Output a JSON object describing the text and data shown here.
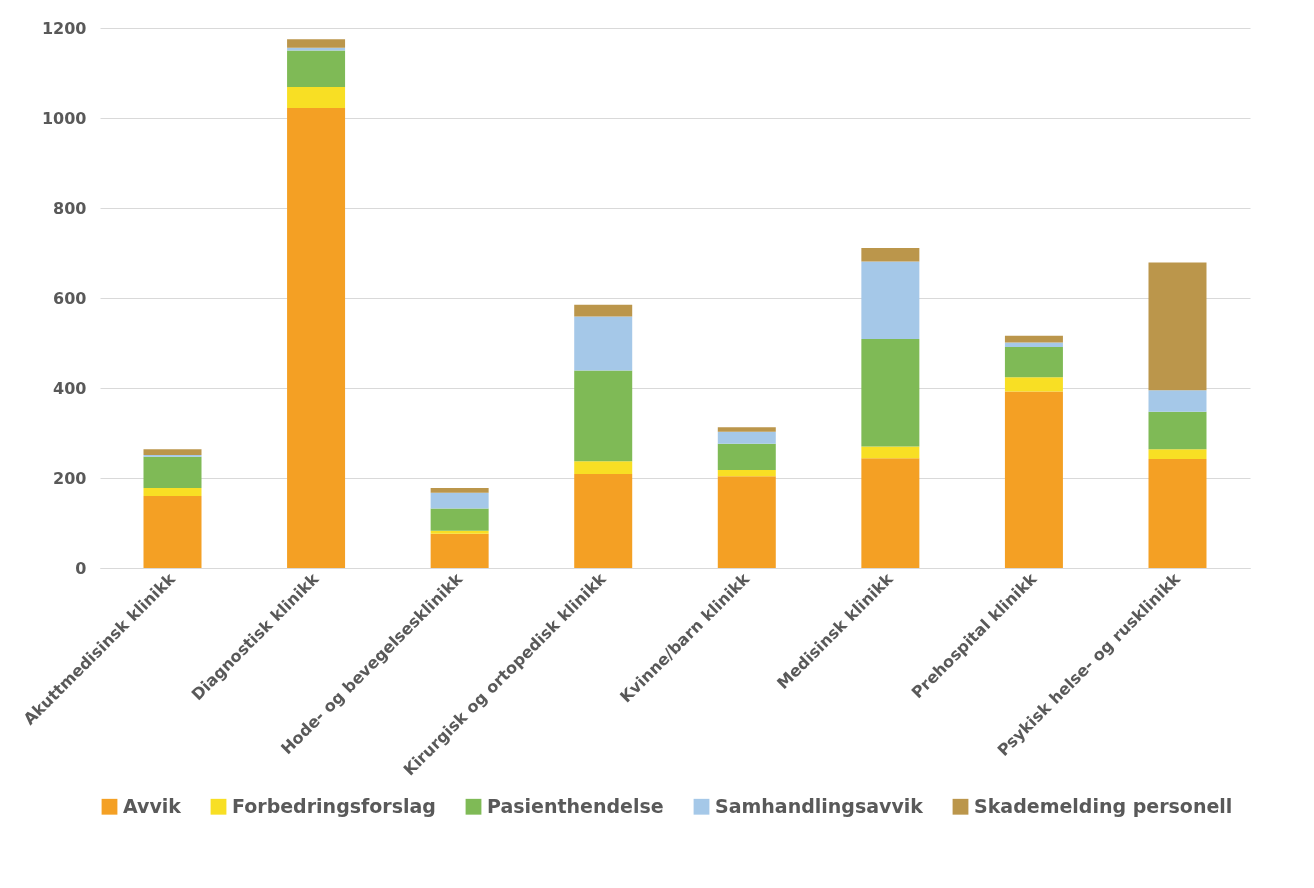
{
  "chart_data": {
    "type": "bar",
    "stacked": true,
    "categories": [
      "Akuttmedisinsk klinikk",
      "Diagnostisk klinikk",
      "Hode- og bevegelsesklinikk",
      "Kirurgisk og ortopedisk klinikk",
      "Kvinne/barn klinikk",
      "Medisinsk klinikk",
      "Prehospital klinikk",
      "Psykisk helse- og rusklinikk"
    ],
    "series": [
      {
        "name": "Avvik",
        "color": "#f4a024",
        "values": [
          160,
          1022,
          76,
          209,
          204,
          244,
          392,
          242
        ]
      },
      {
        "name": "Forbedringsforslag",
        "color": "#f8df24",
        "values": [
          18,
          47,
          7,
          28,
          14,
          26,
          32,
          22
        ]
      },
      {
        "name": "Pasienthendelse",
        "color": "#7fba56",
        "values": [
          69,
          81,
          49,
          202,
          58,
          239,
          67,
          83
        ]
      },
      {
        "name": "Samhandlingsavvik",
        "color": "#a5c8e8",
        "values": [
          4,
          6,
          35,
          120,
          27,
          172,
          10,
          48
        ]
      },
      {
        "name": "Skademelding personell",
        "color": "#bb964b",
        "values": [
          13,
          19,
          11,
          26,
          10,
          30,
          15,
          284
        ]
      }
    ],
    "ylim": [
      0,
      1200
    ],
    "yticks": [
      0,
      200,
      400,
      600,
      800,
      1000,
      1200
    ],
    "grid": "y",
    "legend": "bottom"
  }
}
